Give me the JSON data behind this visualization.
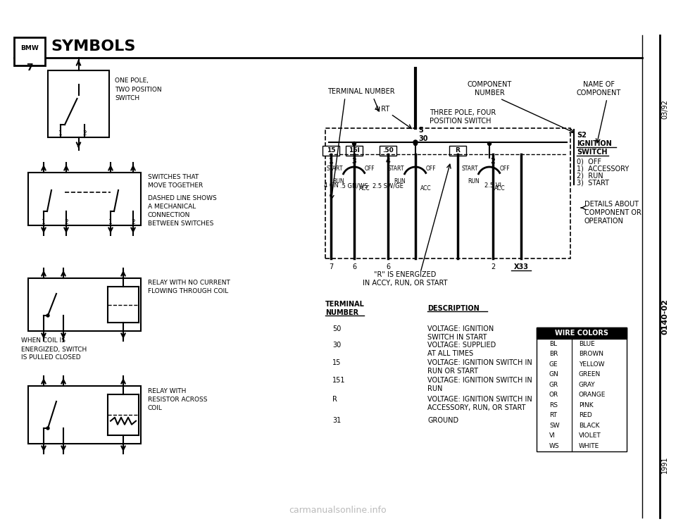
{
  "title": "SYMBOLS",
  "bg_color": "#ffffff",
  "text_color": "#000000",
  "page_ref_top": "03/92",
  "page_ref_mid": "0140-02",
  "year_bottom": "1991",
  "terminal_table_rows": [
    [
      "50",
      "VOLTAGE: IGNITION\nSWITCH IN START"
    ],
    [
      "30",
      "VOLTAGE: SUPPLIED\nAT ALL TIMES"
    ],
    [
      "15",
      "VOLTAGE: IGNITION SWITCH IN\nRUN OR START"
    ],
    [
      "151",
      "VOLTAGE: IGNITION SWITCH IN\nRUN"
    ],
    [
      "R",
      "VOLTAGE: IGNITION SWITCH IN\nACCESSORY, RUN, OR START"
    ],
    [
      "31",
      "GROUND"
    ]
  ],
  "wire_colors_rows": [
    [
      "BL",
      "BLUE"
    ],
    [
      "BR",
      "BROWN"
    ],
    [
      "GE",
      "YELLOW"
    ],
    [
      "GN",
      "GREEN"
    ],
    [
      "GR",
      "GRAY"
    ],
    [
      "OR",
      "ORANGE"
    ],
    [
      "RS",
      "PINK"
    ],
    [
      "RT",
      "RED"
    ],
    [
      "SW",
      "BLACK"
    ],
    [
      "VI",
      "VIOLET"
    ],
    [
      "WS",
      "WHITE"
    ]
  ]
}
